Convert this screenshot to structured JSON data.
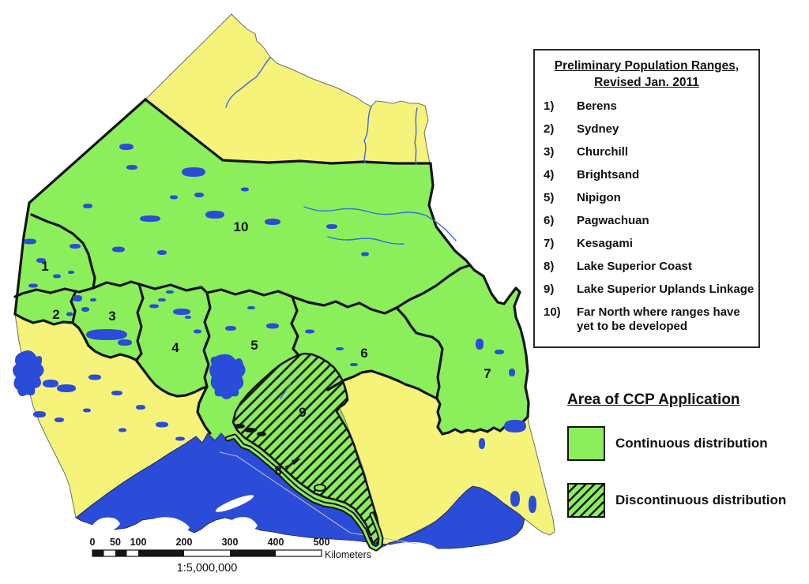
{
  "legend": {
    "title_line1": "Preliminary Population Ranges,",
    "title_line2": "Revised Jan. 2011",
    "items": [
      {
        "num": "1)",
        "name": "Berens"
      },
      {
        "num": "2)",
        "name": "Sydney"
      },
      {
        "num": "3)",
        "name": "Churchill"
      },
      {
        "num": "4)",
        "name": "Brightsand"
      },
      {
        "num": "5)",
        "name": "Nipigon"
      },
      {
        "num": "6)",
        "name": "Pagwachuan"
      },
      {
        "num": "7)",
        "name": "Kesagami"
      },
      {
        "num": "8)",
        "name": "Lake Superior Coast"
      },
      {
        "num": "9)",
        "name": "Lake Superior Uplands Linkage"
      },
      {
        "num": "10)",
        "name": "Far North where ranges have yet to be developed"
      }
    ]
  },
  "ccp_legend": {
    "heading": "Area of CCP Application",
    "continuous_label": "Continuous distribution",
    "discontinuous_label": "Discontinuous distribution"
  },
  "scalebar": {
    "ticks": [
      "0",
      "50",
      "100",
      "200",
      "300",
      "400",
      "500"
    ],
    "unit_label": "Kilometers",
    "scale_ratio": "1:5,000,000"
  },
  "map": {
    "region_labels": [
      "1",
      "2",
      "3",
      "4",
      "5",
      "6",
      "7",
      "8",
      "9",
      "10"
    ],
    "colors": {
      "continuous_green": "#8bef5c",
      "outside_yellow": "#f6f37b",
      "water_blue": "#2b4cd8",
      "border_black": "#141414",
      "background_white": "#ffffff"
    }
  }
}
